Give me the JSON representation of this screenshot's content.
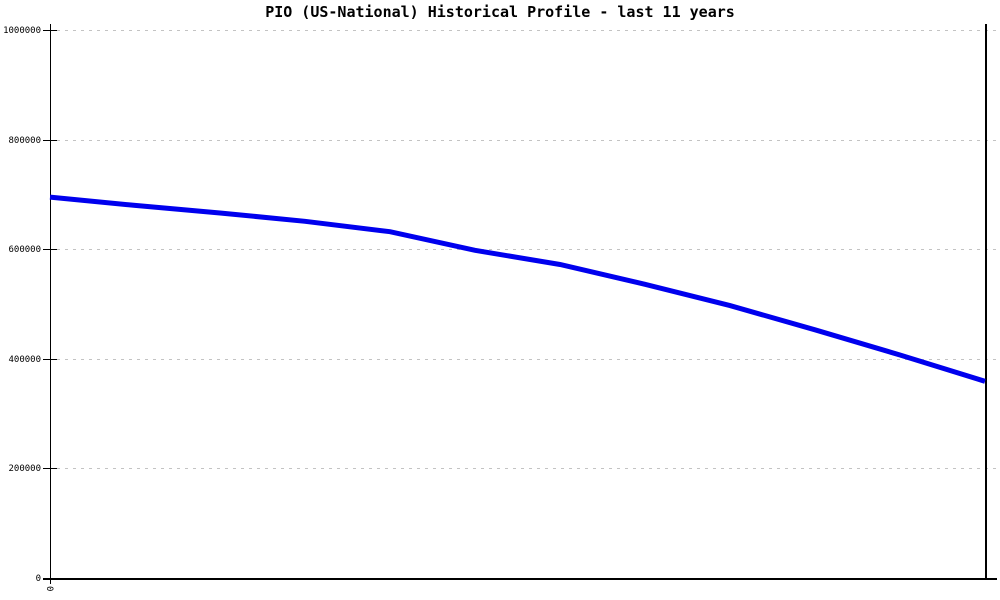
{
  "window": {
    "background": "#ffffff"
  },
  "chart_data": {
    "type": "line",
    "title": "PIO (US-National) Historical Profile - last 11 years",
    "x": [
      0,
      1,
      2,
      3,
      4,
      5,
      6,
      7,
      8,
      9,
      10,
      11
    ],
    "values": [
      695000,
      680000,
      666000,
      651000,
      632000,
      598000,
      572000,
      536000,
      497000,
      453000,
      407000,
      359000
    ],
    "xlabel": "",
    "ylabel": "",
    "xlim": [
      0,
      11
    ],
    "ylim": [
      0,
      1000000
    ],
    "yticks": [
      0,
      200000,
      400000,
      600000,
      800000,
      1000000
    ],
    "ytick_labels": [
      "0",
      "200000",
      "400000",
      "600000",
      "800000",
      "1000000"
    ],
    "xtick_labels": [
      "0"
    ],
    "grid": "horizontal-dashed",
    "legend": "none",
    "line_color": "#0000ee",
    "line_width": 5,
    "grid_color": "#c3c3c3",
    "axis_color": "#000000",
    "text_color": "#000000"
  }
}
